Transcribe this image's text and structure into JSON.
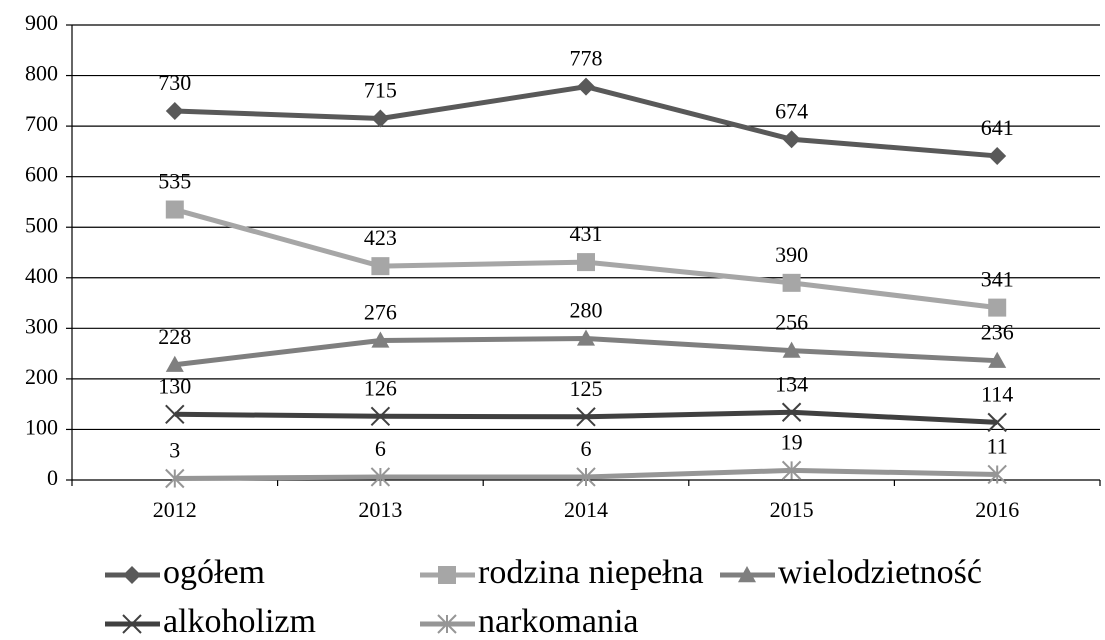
{
  "chart_data": {
    "type": "line",
    "categories": [
      "2012",
      "2013",
      "2014",
      "2015",
      "2016"
    ],
    "series": [
      {
        "name": "ogółem",
        "color": "#595959",
        "marker": "diamond",
        "values": [
          730,
          715,
          778,
          674,
          641
        ]
      },
      {
        "name": "rodzina niepełna",
        "color": "#a6a6a6",
        "marker": "square",
        "values": [
          535,
          423,
          431,
          390,
          341
        ]
      },
      {
        "name": "wielodzietność",
        "color": "#7f7f7f",
        "marker": "triangle",
        "values": [
          228,
          276,
          280,
          256,
          236
        ]
      },
      {
        "name": "alkoholizm",
        "color": "#404040",
        "marker": "x",
        "values": [
          130,
          126,
          125,
          134,
          114
        ]
      },
      {
        "name": "narkomania",
        "color": "#969696",
        "marker": "asterisk",
        "values": [
          3,
          6,
          6,
          19,
          11
        ]
      }
    ],
    "ylim": [
      0,
      900
    ],
    "yticks": [
      0,
      100,
      200,
      300,
      400,
      500,
      600,
      700,
      800,
      900
    ],
    "grid": true,
    "data_labels": true,
    "legend": "bottom"
  }
}
